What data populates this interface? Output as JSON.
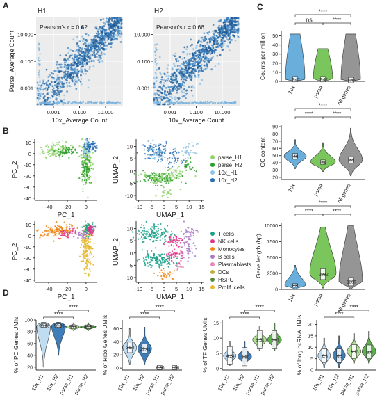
{
  "panels": {
    "A": "A",
    "B": "B",
    "C": "C",
    "D": "D"
  },
  "chart_data": [
    {
      "type": "scatter",
      "id": "A1",
      "title": "H1",
      "annotation": "Pearson's r = 0.62",
      "xlabel": "10x_Average Count",
      "ylabel": "Parse_Average Count",
      "xticks": [
        "0.001",
        "0.100",
        "10.000"
      ],
      "yticks": [
        "10.000",
        "0.100",
        "0.001"
      ],
      "log_scale": true,
      "r": 0.62
    },
    {
      "type": "scatter",
      "id": "A2",
      "title": "H2",
      "annotation": "Pearson's r = 0.66",
      "xlabel": "10x_Average Count",
      "ylabel": "",
      "xticks": [
        "0.001",
        "0.100",
        "10.000"
      ],
      "yticks": [
        "10.000",
        "0.100",
        "0.001"
      ],
      "log_scale": true,
      "r": 0.66
    },
    {
      "type": "scatter",
      "id": "B-pca-sample",
      "xlabel": "PC_1",
      "ylabel": "PC_2",
      "xticks": [
        "-40",
        "-20",
        "0"
      ],
      "yticks": [
        "10",
        "0",
        "-10",
        "-20",
        "-30",
        "-40"
      ],
      "xlim": [
        -55,
        12
      ],
      "ylim": [
        -42,
        13
      ]
    },
    {
      "type": "scatter",
      "id": "B-umap-sample",
      "xlabel": "UMAP_1",
      "ylabel": "UMAP_2",
      "xticks": [
        "-10",
        "-5",
        "0",
        "5",
        "10",
        "15"
      ],
      "yticks": [
        "10",
        "5",
        "0",
        "-5",
        "-10"
      ],
      "xlim": [
        -11,
        16
      ],
      "ylim": [
        -12,
        13
      ],
      "legend": [
        {
          "name": "parse_H1",
          "color": "#8fd46a"
        },
        {
          "name": "parse_H2",
          "color": "#2e9e2e"
        },
        {
          "name": "10x_H1",
          "color": "#8ec4e4"
        },
        {
          "name": "10x_H2",
          "color": "#2a6fb0"
        }
      ]
    },
    {
      "type": "scatter",
      "id": "B-pca-celltype",
      "xlabel": "PC_1",
      "ylabel": "PC_2",
      "xticks": [
        "-40",
        "-20",
        "0"
      ],
      "yticks": [
        "10",
        "0",
        "-10",
        "-20",
        "-30",
        "-40"
      ],
      "xlim": [
        -55,
        12
      ],
      "ylim": [
        -42,
        13
      ]
    },
    {
      "type": "scatter",
      "id": "B-umap-celltype",
      "xlabel": "UMAP_1",
      "ylabel": "UMAP_2",
      "xticks": [
        "-10",
        "-5",
        "0",
        "5",
        "10",
        "15"
      ],
      "yticks": [
        "10",
        "5",
        "0",
        "-5",
        "-10"
      ],
      "xlim": [
        -11,
        16
      ],
      "ylim": [
        -12,
        13
      ],
      "legend": [
        {
          "name": "T cells",
          "color": "#1aa08a"
        },
        {
          "name": "NK cells",
          "color": "#e0368a"
        },
        {
          "name": "Monocytes",
          "color": "#f0861a"
        },
        {
          "name": "B cells",
          "color": "#a87ac8"
        },
        {
          "name": "Plasmablasts",
          "color": "#e886b8"
        },
        {
          "name": "DCs",
          "color": "#b8b040"
        },
        {
          "name": "HSPC",
          "color": "#5a8a3a"
        },
        {
          "name": "Prolif. cells",
          "color": "#e8b830"
        }
      ]
    },
    {
      "type": "violin",
      "id": "C1",
      "ylabel": "Counts per million",
      "categories": [
        "10x",
        "parse",
        "All genes"
      ],
      "colors": [
        "#5aa6d8",
        "#6cc04a",
        "#8a8a8a"
      ],
      "medians": [
        2.42,
        2.42,
        1.46
      ],
      "median_labels": [
        "2.42",
        "2.42",
        "1.46"
      ],
      "ylim": [
        0,
        55
      ],
      "yticks": [
        "0",
        "10",
        "20",
        "30",
        "40",
        "50"
      ],
      "sig": [
        {
          "label": "ns",
          "pair": [
            0,
            1
          ]
        },
        {
          "label": "****",
          "pair": [
            1,
            2
          ]
        },
        {
          "label": "****",
          "pair": [
            0,
            2
          ]
        }
      ]
    },
    {
      "type": "violin",
      "id": "C2",
      "ylabel": "GC content",
      "categories": [
        "10x",
        "parse",
        "All genes"
      ],
      "colors": [
        "#5aa6d8",
        "#6cc04a",
        "#8a8a8a"
      ],
      "medians": [
        49,
        41,
        44
      ],
      "median_labels": [
        "49",
        "41",
        "44"
      ],
      "ylim": [
        17,
        92
      ],
      "yticks": [
        "20",
        "30",
        "40",
        "50",
        "60",
        "70",
        "80",
        "90"
      ],
      "sig": [
        {
          "label": "****",
          "pair": [
            0,
            1
          ]
        },
        {
          "label": "****",
          "pair": [
            1,
            2
          ]
        },
        {
          "label": "****",
          "pair": [
            0,
            2
          ]
        }
      ]
    },
    {
      "type": "violin",
      "id": "C3",
      "ylabel": "Gene length (bp)",
      "categories": [
        "10x",
        "parse",
        "All genes"
      ],
      "colors": [
        "#5aa6d8",
        "#6cc04a",
        "#8a8a8a"
      ],
      "medians": [
        620,
        2392,
        1209
      ],
      "median_labels": [
        "620",
        "2392",
        "1209"
      ],
      "ylim": [
        0,
        10500
      ],
      "yticks": [
        "0",
        "2500",
        "5000",
        "7500",
        "10000"
      ],
      "sig": [
        {
          "label": "****",
          "pair": [
            0,
            1
          ]
        },
        {
          "label": "****",
          "pair": [
            1,
            2
          ]
        },
        {
          "label": "****",
          "pair": [
            0,
            2
          ]
        }
      ]
    },
    {
      "type": "violin",
      "id": "D1",
      "ylabel": "% of PC Genes UMIs",
      "categories": [
        "10x_H1",
        "10x_H2",
        "parse_H1",
        "parse_H2"
      ],
      "colors": [
        "#b8d8ee",
        "#2a6fb0",
        "#a6dc8a",
        "#4aa83a"
      ],
      "medians": [
        90.66,
        90.36,
        88.63,
        88.59
      ],
      "median_labels": [
        "90.66",
        "90.36",
        "88.63",
        "88.59"
      ],
      "ylim": [
        15,
        100
      ],
      "yticks": [
        "20",
        "40",
        "60",
        "80",
        "100"
      ],
      "sig": [
        {
          "label": "****",
          "pair": [
            0,
            2
          ]
        },
        {
          "label": "****",
          "pair": [
            1,
            3
          ]
        }
      ]
    },
    {
      "type": "violin",
      "id": "D2",
      "ylabel": "% of Ribo Genes UMIs",
      "categories": [
        "10x_H1",
        "10x_H2",
        "parse_H1",
        "parse_H2"
      ],
      "colors": [
        "#b8d8ee",
        "#2a6fb0",
        "#a6dc8a",
        "#4aa83a"
      ],
      "medians": [
        31.4,
        29.41,
        0.96,
        1.0
      ],
      "median_labels": [
        "31.4",
        "29.41",
        "0.96",
        "1.00"
      ],
      "ylim": [
        -3,
        73
      ],
      "yticks": [
        "0",
        "20",
        "40",
        "60"
      ],
      "sig": [
        {
          "label": "****",
          "pair": [
            0,
            2
          ]
        },
        {
          "label": "****",
          "pair": [
            1,
            3
          ]
        }
      ]
    },
    {
      "type": "violin",
      "id": "D3",
      "ylabel": "% of TF Genes UMIs",
      "categories": [
        "10x_H1",
        "10x_H2",
        "parse_H1",
        "parse_H2"
      ],
      "colors": [
        "#b8d8ee",
        "#2a6fb0",
        "#a6dc8a",
        "#4aa83a"
      ],
      "medians": [
        4.24,
        3.9,
        9.51,
        9.47
      ],
      "median_labels": [
        "4.24",
        "3.90",
        "9.51",
        "9.47"
      ],
      "ylim": [
        -0.5,
        16
      ],
      "yticks": [
        "0",
        "5",
        "10",
        "15"
      ],
      "sig": [
        {
          "label": "****",
          "pair": [
            0,
            2
          ]
        },
        {
          "label": "****",
          "pair": [
            1,
            3
          ]
        }
      ]
    },
    {
      "type": "violin",
      "id": "D4",
      "ylabel": "% of long ncRNA UMIs",
      "categories": [
        "10x_H1",
        "10x_H2",
        "parse_H1",
        "parse_H2"
      ],
      "colors": [
        "#b8d8ee",
        "#2a6fb0",
        "#a6dc8a",
        "#4aa83a"
      ],
      "medians": [
        6.3,
        6.3,
        8.13,
        8.0
      ],
      "median_labels": [
        "6.3",
        "6.3",
        "8.13",
        "8.0"
      ],
      "ylim": [
        0,
        22
      ],
      "yticks": [
        "0",
        "5",
        "10",
        "15",
        "20"
      ],
      "sig": [
        {
          "label": "****",
          "pair": [
            0,
            2
          ]
        },
        {
          "label": "****",
          "pair": [
            1,
            3
          ]
        }
      ]
    }
  ]
}
